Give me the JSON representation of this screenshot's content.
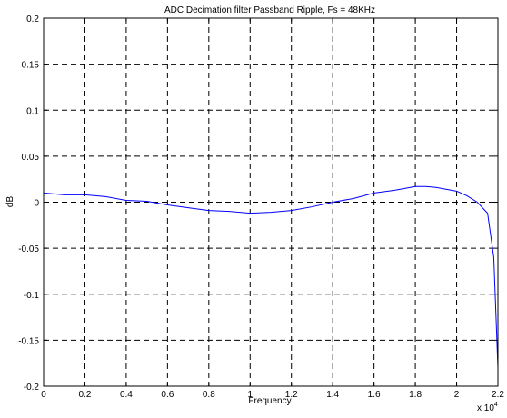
{
  "chart_data": {
    "type": "line",
    "title": "ADC Decimation filter Passband Ripple, Fs = 48KHz",
    "xlabel": "Frequency",
    "ylabel": "dB",
    "x_multiplier_label": "x 10",
    "x_multiplier_exponent": "4",
    "xlim": [
      0,
      2.2
    ],
    "ylim": [
      -0.2,
      0.2
    ],
    "x_ticks": [
      0,
      0.2,
      0.4,
      0.6,
      0.8,
      1,
      1.2,
      1.4,
      1.6,
      1.8,
      2,
      2.2
    ],
    "x_tick_labels": [
      "0",
      "0.2",
      "0.4",
      "0.6",
      "0.8",
      "1",
      "1.2",
      "1.4",
      "1.6",
      "1.8",
      "2",
      "2.2"
    ],
    "y_ticks": [
      0.2,
      0.15,
      0.1,
      0.05,
      0,
      -0.05,
      -0.1,
      -0.15,
      -0.2
    ],
    "y_tick_labels": [
      "0.2",
      "0.15",
      "0.1",
      "0.05",
      "0",
      "-0.05",
      "-0.1",
      "-0.15",
      "-0.2"
    ],
    "grid": true,
    "line_color": "#0000ff",
    "series": [
      {
        "x": [
          0,
          0.1,
          0.2,
          0.3,
          0.4,
          0.5,
          0.6,
          0.7,
          0.8,
          0.9,
          1.0,
          1.1,
          1.2,
          1.3,
          1.4,
          1.5,
          1.6,
          1.7,
          1.8,
          1.85,
          1.9,
          2.0,
          2.05,
          2.1,
          2.15,
          2.18,
          2.2
        ],
        "y": [
          0.01,
          0.008,
          0.008,
          0.006,
          0.002,
          0.001,
          -0.003,
          -0.006,
          -0.009,
          -0.01,
          -0.012,
          -0.011,
          -0.009,
          -0.005,
          0.0,
          0.004,
          0.01,
          0.013,
          0.017,
          0.017,
          0.016,
          0.012,
          0.007,
          0.0,
          -0.012,
          -0.06,
          -0.18
        ]
      }
    ]
  }
}
